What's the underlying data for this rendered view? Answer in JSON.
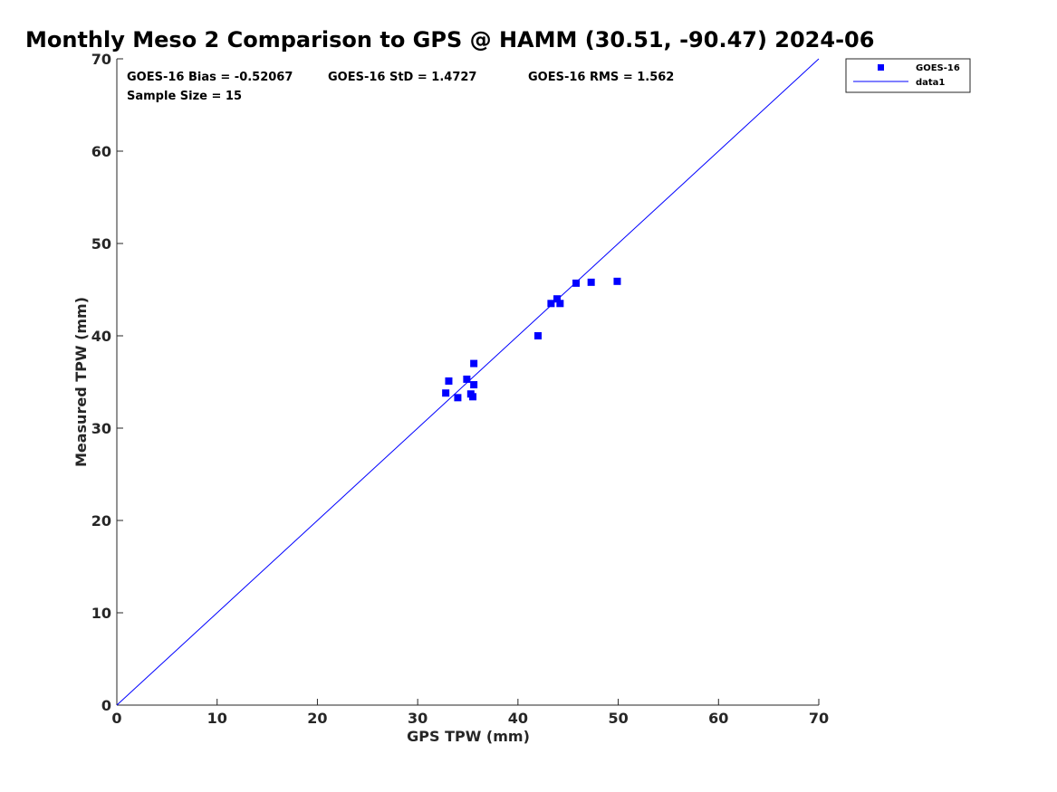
{
  "chart_data": {
    "type": "scatter",
    "title": "Monthly Meso 2 Comparison to GPS @ HAMM (30.51, -90.47) 2024-06",
    "xlabel": "GPS TPW (mm)",
    "ylabel": "Measured TPW (mm)",
    "xlim": [
      0,
      70
    ],
    "ylim": [
      0,
      70
    ],
    "xticks": [
      "0",
      "10",
      "20",
      "30",
      "40",
      "50",
      "60",
      "70"
    ],
    "yticks": [
      "0",
      "10",
      "20",
      "30",
      "40",
      "50",
      "60",
      "70"
    ],
    "grid": false,
    "legend_position": "outside-top-right",
    "annotations": {
      "bias": "GOES-16 Bias = -0.52067",
      "std": "GOES-16 StD = 1.4727",
      "rms": "GOES-16 RMS = 1.562",
      "sample": "Sample Size = 15"
    },
    "series": [
      {
        "name": "GOES-16",
        "kind": "scatter",
        "marker": "square",
        "color": "#0000ff",
        "points": [
          {
            "x": 32.8,
            "y": 33.8
          },
          {
            "x": 33.1,
            "y": 35.1
          },
          {
            "x": 34.0,
            "y": 33.3
          },
          {
            "x": 34.9,
            "y": 35.3
          },
          {
            "x": 35.3,
            "y": 33.7
          },
          {
            "x": 35.5,
            "y": 33.4
          },
          {
            "x": 35.6,
            "y": 34.7
          },
          {
            "x": 35.6,
            "y": 37.0
          },
          {
            "x": 42.0,
            "y": 40.0
          },
          {
            "x": 43.3,
            "y": 43.5
          },
          {
            "x": 43.9,
            "y": 44.0
          },
          {
            "x": 44.2,
            "y": 43.5
          },
          {
            "x": 45.8,
            "y": 45.7
          },
          {
            "x": 47.3,
            "y": 45.8
          },
          {
            "x": 49.9,
            "y": 45.9
          }
        ]
      },
      {
        "name": "data1",
        "kind": "line",
        "color": "#0000ff",
        "points": [
          {
            "x": 0,
            "y": 0
          },
          {
            "x": 70,
            "y": 70
          }
        ]
      }
    ]
  }
}
